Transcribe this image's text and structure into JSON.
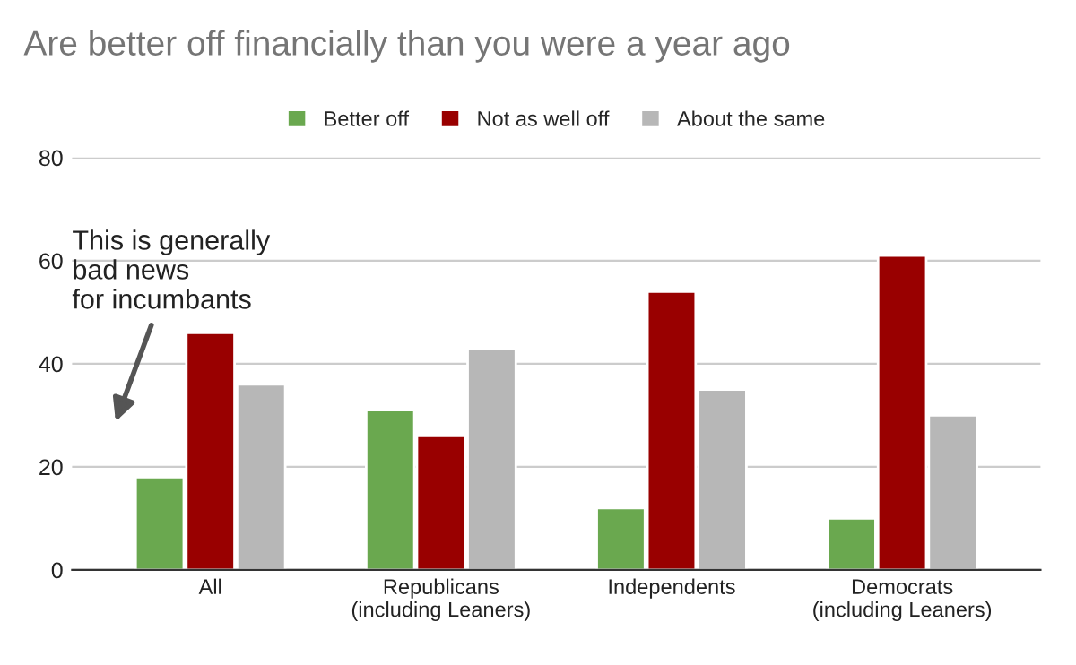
{
  "chart_data": {
    "type": "bar",
    "title": "Are better off financially than you were a year ago",
    "categories": [
      "All",
      "Republicans\n(including Leaners)",
      "Independents",
      "Democrats\n(including Leaners)"
    ],
    "series": [
      {
        "name": "Better off",
        "color": "#6aa84f",
        "values": [
          18,
          31,
          12,
          10
        ]
      },
      {
        "name": "Not as well off",
        "color": "#990000",
        "values": [
          46,
          26,
          54,
          61
        ]
      },
      {
        "name": "About the same",
        "color": "#b7b7b7",
        "values": [
          36,
          43,
          35,
          30
        ]
      }
    ],
    "ylim": [
      0,
      80
    ],
    "yticks": [
      0,
      20,
      40,
      60,
      80
    ],
    "grid": "y",
    "legend": "top",
    "annotations": [
      "This is generally\nbad news\nfor incumbants"
    ]
  }
}
